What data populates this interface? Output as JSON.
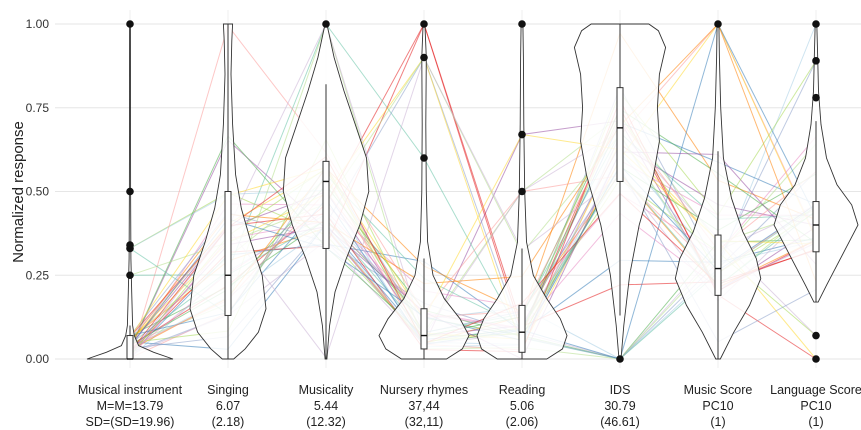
{
  "chart_data": {
    "type": "violin",
    "ylabel": "Normalized response",
    "ylim": [
      0,
      1
    ],
    "yticks": [
      "0.00",
      "0.25",
      "0.50",
      "0.75",
      "1.00"
    ],
    "ytick_values": [
      0,
      0.25,
      0.5,
      0.75,
      1.0
    ],
    "grid": true,
    "categories": [
      {
        "name": "Musical instrument",
        "line2": "M=M=13.79",
        "line3": "SD=(SD=19.96)",
        "box": [
          0,
          0,
          0.07
        ],
        "whisker": [
          0,
          0.1
        ],
        "median": 0,
        "outliers": [
          0.25,
          0.33,
          0.34,
          0.5,
          1.0
        ]
      },
      {
        "name": "Singing",
        "line2": "6.07",
        "line3": "(2.18)",
        "box": [
          0.13,
          0.25,
          0.5
        ],
        "whisker": [
          0,
          1.0
        ],
        "median": 0.25,
        "outliers": []
      },
      {
        "name": "Musicality",
        "line2": "5.44",
        "line3": "(12.32)",
        "box": [
          0.33,
          0.53,
          0.59
        ],
        "whisker": [
          0,
          0.82
        ],
        "median": 0.53,
        "outliers": [
          1.0
        ]
      },
      {
        "name": "Nursery rhymes",
        "line2": "37,44",
        "line3": "(32,11)",
        "box": [
          0.03,
          0.07,
          0.15
        ],
        "whisker": [
          0,
          0.3
        ],
        "median": 0.07,
        "outliers": [
          0.6,
          0.9,
          1.0
        ]
      },
      {
        "name": "Reading",
        "line2": "5.06",
        "line3": "(2.06)",
        "box": [
          0.02,
          0.08,
          0.16
        ],
        "whisker": [
          0,
          0.33
        ],
        "median": 0.08,
        "outliers": [
          0.5,
          0.67,
          1.0
        ]
      },
      {
        "name": "IDS",
        "line2": "30.79",
        "line3": "(46.61)",
        "box": [
          0.53,
          0.69,
          0.81
        ],
        "whisker": [
          0.13,
          1.0
        ],
        "median": 0.69,
        "outliers": [
          0
        ]
      },
      {
        "name": "Music Score",
        "line2": "PC10",
        "line3": "(1)",
        "box": [
          0.19,
          0.27,
          0.37
        ],
        "whisker": [
          0,
          0.62
        ],
        "median": 0.27,
        "outliers": [
          1.0
        ]
      },
      {
        "name": "Language Score",
        "line2": "PC10",
        "line3": "(1)",
        "box": [
          0.32,
          0.4,
          0.47
        ],
        "whisker": [
          0.17,
          0.71
        ],
        "median": 0.4,
        "outliers": [
          0,
          0.07,
          0.78,
          0.89,
          1.0
        ]
      }
    ],
    "colors": {
      "grid": "#e6e6e6",
      "violin_stroke": "#333333",
      "point": "#111111",
      "lines": [
        "#e41a1c",
        "#377eb8",
        "#4daf4a",
        "#984ea3",
        "#ff7f00",
        "#a6cee3",
        "#b2df8a",
        "#fb9a99",
        "#cab2d6",
        "#66c2a5",
        "#e78ac3",
        "#8da0cb",
        "#a6d854",
        "#ffd92f"
      ]
    }
  }
}
